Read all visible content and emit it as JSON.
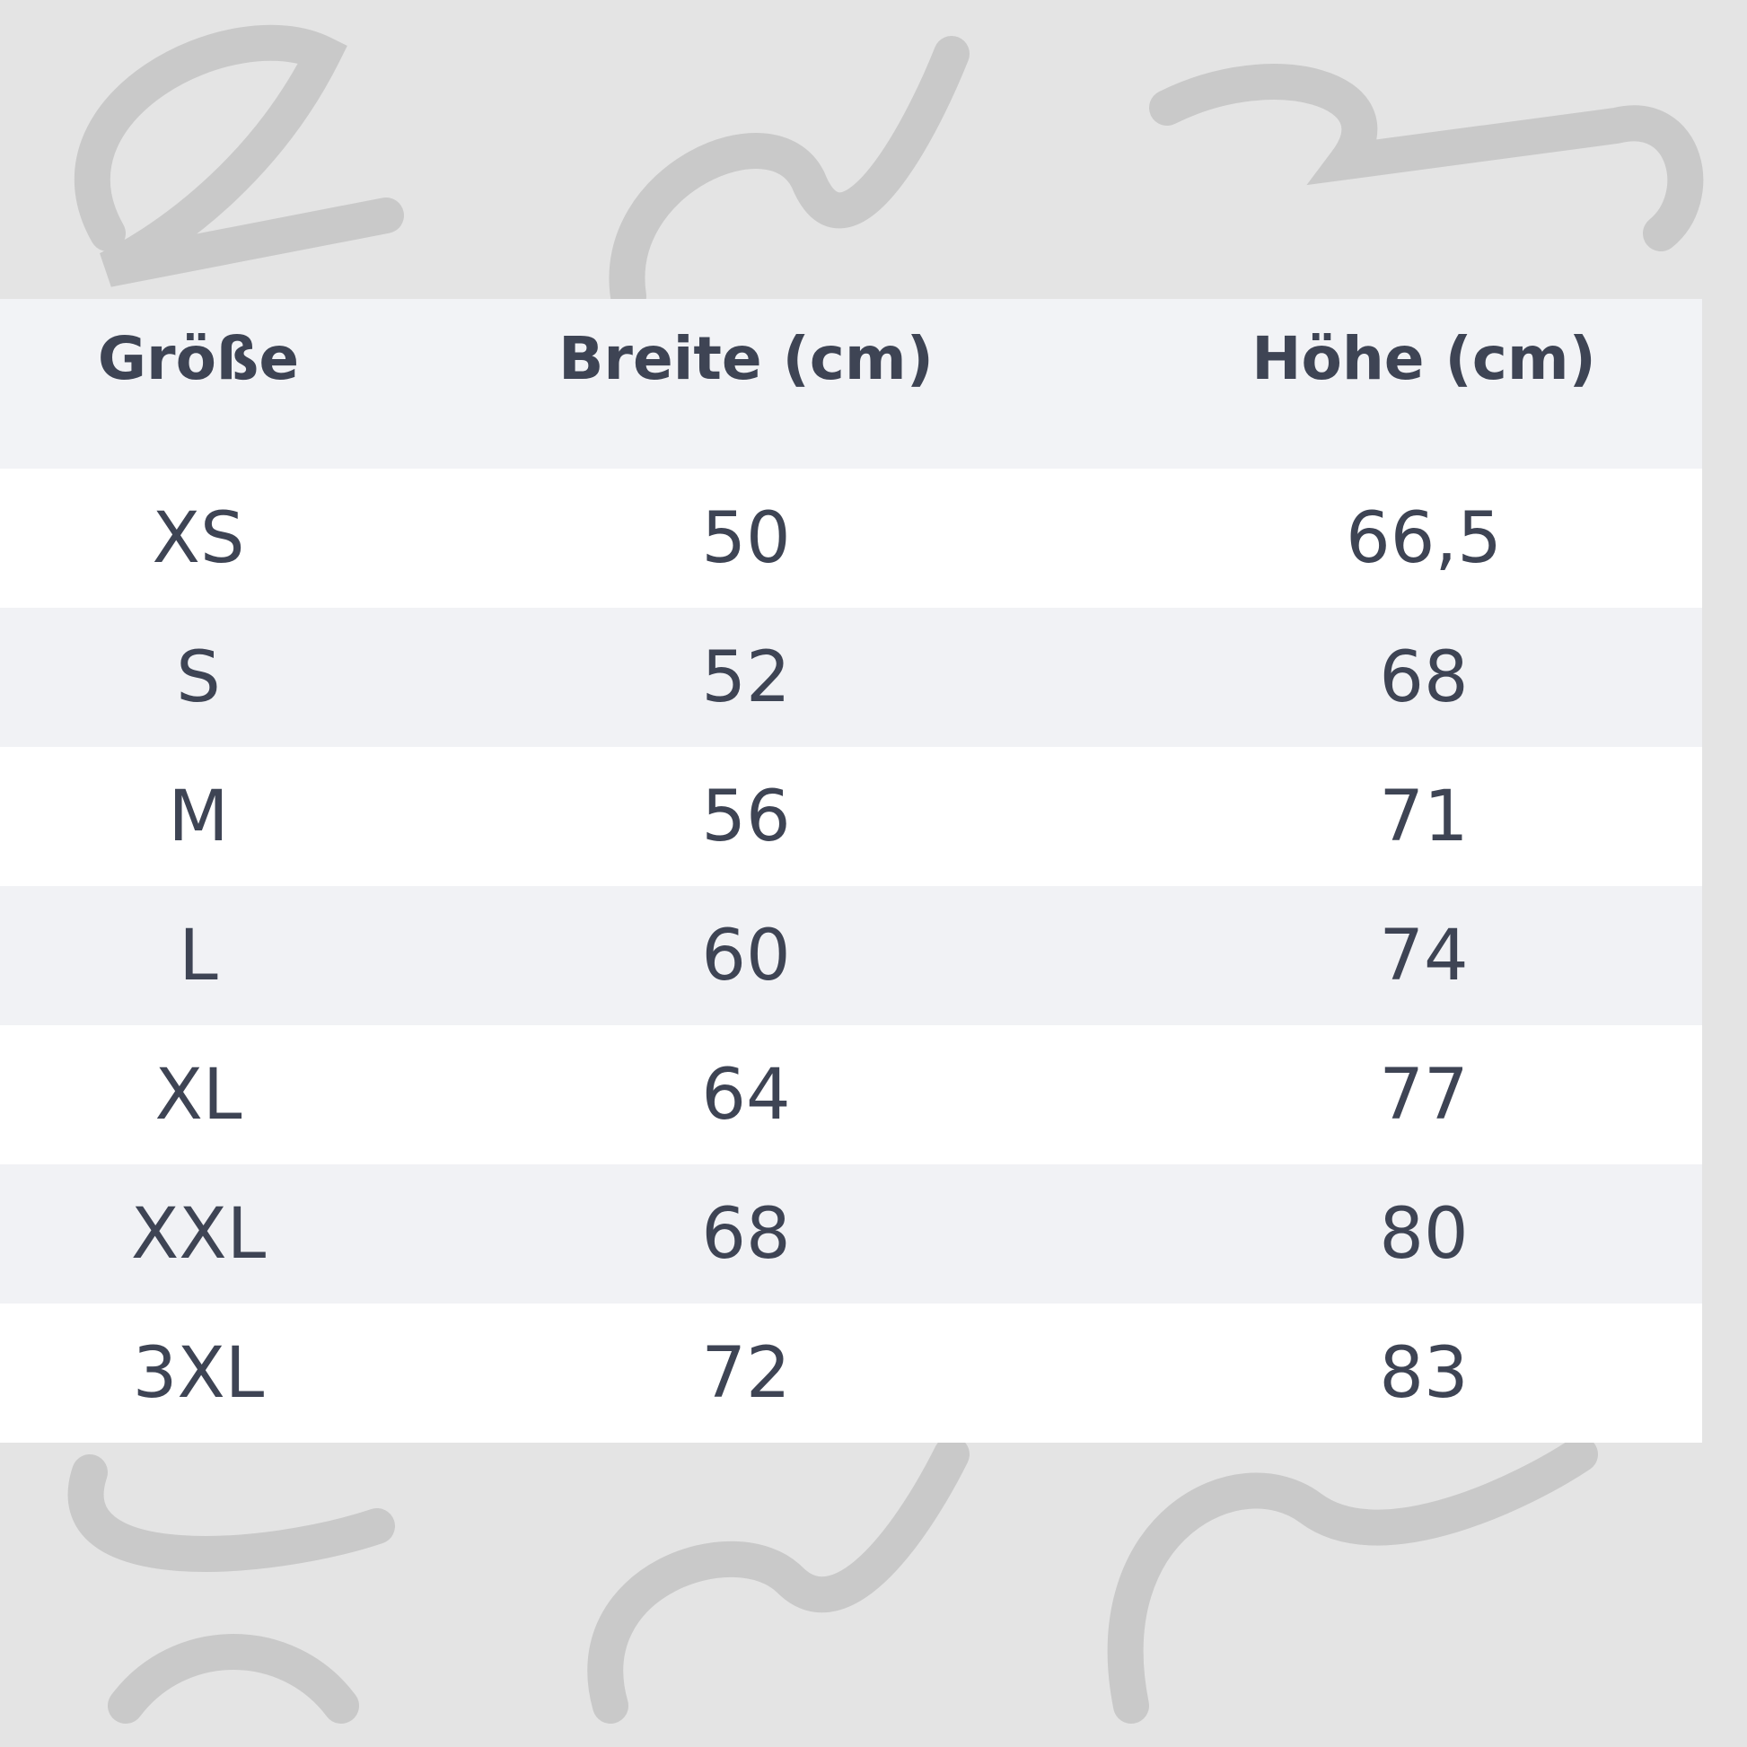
{
  "table": {
    "header": [
      "Größe",
      "Breite (cm)",
      "Höhe (cm)"
    ],
    "rows": [
      [
        "XS",
        "50",
        "66,5"
      ],
      [
        "S",
        "52",
        "68"
      ],
      [
        "M",
        "56",
        "71"
      ],
      [
        "L",
        "60",
        "74"
      ],
      [
        "XL",
        "64",
        "77"
      ],
      [
        "XXL",
        "68",
        "80"
      ],
      [
        "3XL",
        "72",
        "83"
      ]
    ]
  }
}
